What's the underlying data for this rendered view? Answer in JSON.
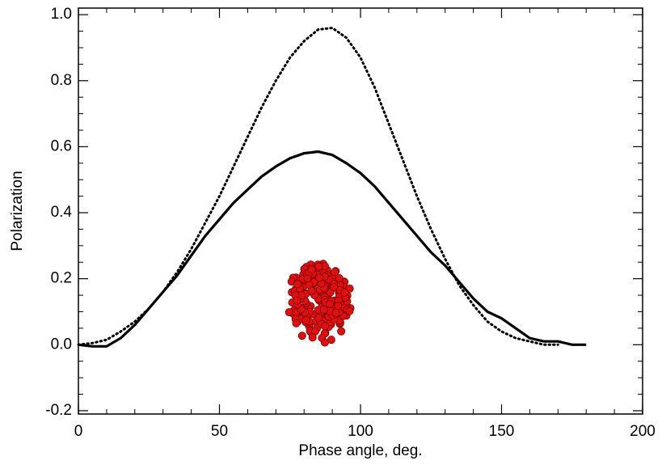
{
  "chart_data": {
    "type": "line",
    "x_label": "Phase angle, deg.",
    "y_label": "Polarization",
    "x": [
      0,
      5,
      10,
      15,
      20,
      25,
      30,
      35,
      40,
      45,
      50,
      55,
      60,
      65,
      70,
      75,
      80,
      85,
      90,
      95,
      100,
      105,
      110,
      115,
      120,
      125,
      130,
      135,
      140,
      145,
      150,
      155,
      160,
      165,
      170,
      175,
      180
    ],
    "series": [
      {
        "color": "#000000",
        "dash": "solid",
        "values": [
          0.0,
          -0.005,
          -0.005,
          0.02,
          0.06,
          0.11,
          0.16,
          0.21,
          0.27,
          0.33,
          0.38,
          0.43,
          0.47,
          0.51,
          0.54,
          0.565,
          0.58,
          0.585,
          0.575,
          0.55,
          0.52,
          0.48,
          0.43,
          0.38,
          0.33,
          0.28,
          0.24,
          0.19,
          0.14,
          0.1,
          0.08,
          0.05,
          0.02,
          0.01,
          0.01,
          0.0,
          0.0
        ]
      },
      {
        "color": "#000000",
        "dash": "dotted",
        "values": [
          0.0,
          0.005,
          0.015,
          0.04,
          0.07,
          0.11,
          0.16,
          0.22,
          0.29,
          0.37,
          0.45,
          0.54,
          0.63,
          0.72,
          0.8,
          0.87,
          0.92,
          0.955,
          0.96,
          0.93,
          0.87,
          0.78,
          0.67,
          0.56,
          0.45,
          0.35,
          0.26,
          0.18,
          0.12,
          0.07,
          0.04,
          0.02,
          0.01,
          0.0,
          0.0,
          null,
          null
        ]
      }
    ],
    "xlim": [
      0,
      200
    ],
    "ylim": [
      -0.21,
      1.02
    ],
    "xticks": [
      0,
      50,
      100,
      150,
      200
    ],
    "yticks": [
      {
        "value": 1,
        "label": "1.0"
      },
      0.8,
      0.6,
      0.4,
      0.2,
      {
        "value": 0,
        "label": "0.0"
      },
      -0.2
    ],
    "x_minor_ticks": [
      10,
      20,
      30,
      40,
      60,
      70,
      80,
      90,
      110,
      120,
      130,
      140,
      160,
      170,
      180,
      190
    ],
    "y_minor_ticks": [
      -0.15,
      -0.1,
      -0.05,
      0.05,
      0.1,
      0.15,
      0.25,
      0.3,
      0.35,
      0.45,
      0.5,
      0.55,
      0.65,
      0.7,
      0.75,
      0.85,
      0.9,
      0.95
    ],
    "grid": false
  }
}
